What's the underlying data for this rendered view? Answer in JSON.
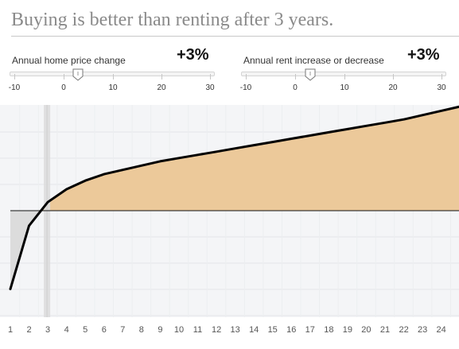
{
  "headline": "Buying is better than renting after 3 years.",
  "controls": {
    "home_price": {
      "label": "Annual home price change",
      "value_text": "+3%",
      "value": 3,
      "tick_labels": [
        "-10",
        "0",
        "10",
        "20",
        "30"
      ]
    },
    "rent": {
      "label": "Annual rent increase or decrease",
      "value_text": "+3%",
      "value": 3,
      "tick_labels": [
        "-10",
        "0",
        "10",
        "20",
        "30"
      ]
    }
  },
  "colors": {
    "advantage_fill": "#ecc99a",
    "deficit_fill": "#dcdcdc",
    "plot_background": "#f4f5f7",
    "curve": "#000000",
    "breakeven_marker": "#dddddd"
  },
  "chart_data": {
    "type": "area",
    "title": "",
    "xlabel": "",
    "ylabel": "",
    "x_tick_labels": [
      "1",
      "2",
      "3",
      "4",
      "5",
      "6",
      "7",
      "8",
      "9",
      "10",
      "11",
      "12",
      "13",
      "14",
      "15",
      "16",
      "17",
      "18",
      "19",
      "20",
      "21",
      "22",
      "23",
      "24"
    ],
    "breakeven_year": 3,
    "grid": true,
    "y_axis_labels": false,
    "series": [
      {
        "x": [
          1,
          2,
          3,
          4,
          5,
          6,
          7,
          8,
          9,
          10,
          11,
          12,
          13,
          14,
          15,
          16,
          17,
          18,
          19,
          20,
          21,
          22,
          23,
          24,
          25
        ],
        "values": [
          -73,
          -14,
          8,
          20,
          28,
          34,
          38,
          42,
          46,
          49,
          52,
          55,
          58,
          61,
          64,
          67,
          70,
          73,
          76,
          79,
          82,
          85,
          89,
          93,
          97
        ]
      }
    ]
  }
}
